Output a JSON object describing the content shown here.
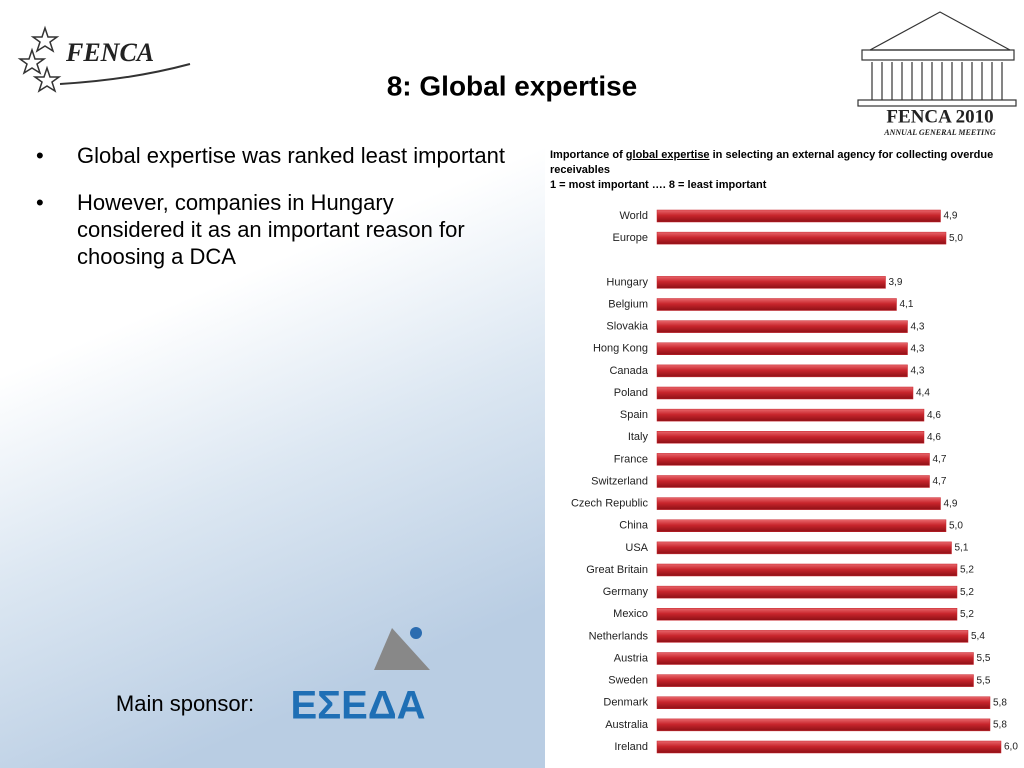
{
  "header": {
    "logo": "FENCA",
    "title": "8: Global expertise",
    "event": "FENCA 2010",
    "event_subtitle": "ANNUAL GENERAL MEETING"
  },
  "bullets": [
    "Global expertise was ranked least important",
    "However, companies in Hungary considered it as an important reason for choosing a DCA"
  ],
  "sponsor": {
    "label": "Main sponsor:",
    "logo": "ΕΣΕΔΑ"
  },
  "chart_data": {
    "type": "bar",
    "orientation": "horizontal",
    "title": [
      "Importance of",
      "global expertise",
      "in selecting an external agency for collecting overdue receivables"
    ],
    "subtitle": "1 = most important …. 8 = least important",
    "color": "#c8252c",
    "categories": [
      "World",
      "Europe",
      null,
      "Hungary",
      "Belgium",
      "Slovakia",
      "Hong Kong",
      "Canada",
      "Poland",
      "Spain",
      "Italy",
      "France",
      "Switzerland",
      "Czech Republic",
      "China",
      "USA",
      "Great Britain",
      "Germany",
      "Mexico",
      "Netherlands",
      "Austria",
      "Sweden",
      "Denmark",
      "Australia",
      "Ireland"
    ],
    "values": [
      4.9,
      5.0,
      null,
      3.9,
      4.1,
      4.3,
      4.3,
      4.3,
      4.4,
      4.6,
      4.6,
      4.7,
      4.7,
      4.9,
      5.0,
      5.1,
      5.2,
      5.2,
      5.2,
      5.4,
      5.5,
      5.5,
      5.8,
      5.8,
      6.0
    ],
    "value_labels": [
      "4,9",
      "5,0",
      null,
      "3,9",
      "4,1",
      "4,3",
      "4,3",
      "4,3",
      "4,4",
      "4,6",
      "4,6",
      "4,7",
      "4,7",
      "4,9",
      "5,0",
      "5,1",
      "5,2",
      "5,2",
      "5,2",
      "5,4",
      "5,5",
      "5,5",
      "5,8",
      "5,8",
      "6,0"
    ]
  }
}
